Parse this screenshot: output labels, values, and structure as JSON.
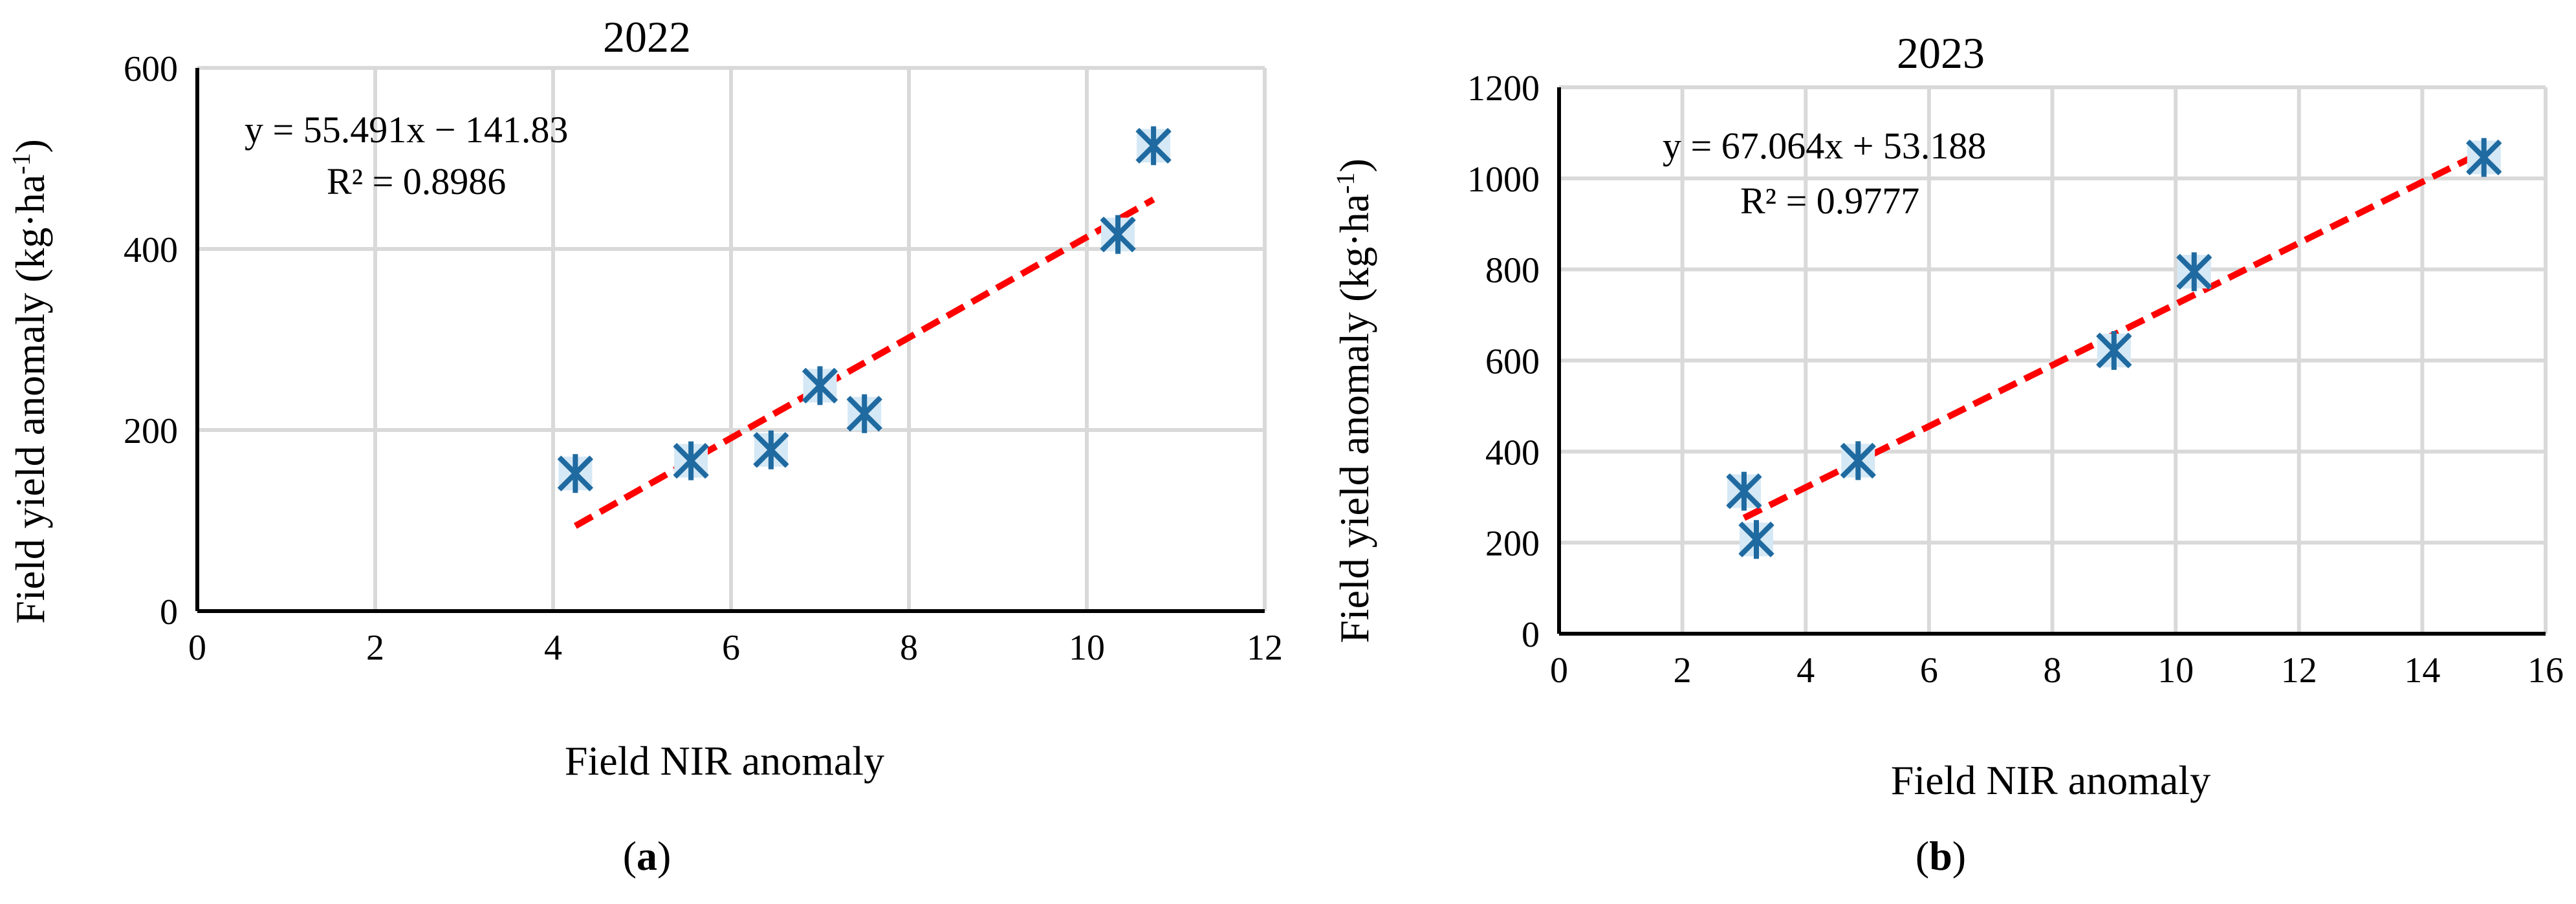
{
  "chart_data": [
    {
      "type": "scatter",
      "title": "2022",
      "xlabel": "Field NIR anomaly",
      "ylabel_main": "Field yield anomaly (kg·ha",
      "ylabel_sup": "-1",
      "ylabel_end": ")",
      "xlim": [
        0,
        12
      ],
      "ylim": [
        0,
        600
      ],
      "xticks": [
        0,
        2,
        4,
        6,
        8,
        10,
        12
      ],
      "yticks": [
        0,
        200,
        400,
        600
      ],
      "grid": true,
      "points": [
        {
          "x": 4.25,
          "y": 152
        },
        {
          "x": 5.55,
          "y": 166
        },
        {
          "x": 6.45,
          "y": 178
        },
        {
          "x": 7.0,
          "y": 249
        },
        {
          "x": 7.5,
          "y": 218
        },
        {
          "x": 10.35,
          "y": 416
        },
        {
          "x": 10.75,
          "y": 514
        }
      ],
      "trendline": {
        "slope": 55.491,
        "intercept": -141.83,
        "x_start": 4.25,
        "x_end": 10.75
      },
      "equation": "y = 55.491x − 141.83",
      "r2_text": "R² = 0.8986",
      "caption_letter": "a"
    },
    {
      "type": "scatter",
      "title": "2023",
      "xlabel": "Field NIR anomaly",
      "ylabel_main": "Field yield anomaly (kg·ha",
      "ylabel_sup": "-1",
      "ylabel_end": ")",
      "xlim": [
        0,
        16
      ],
      "ylim": [
        0,
        1200
      ],
      "xticks": [
        0,
        2,
        4,
        6,
        8,
        10,
        12,
        14,
        16
      ],
      "yticks": [
        0,
        200,
        400,
        600,
        800,
        1000,
        1200
      ],
      "grid": true,
      "points": [
        {
          "x": 3.0,
          "y": 313
        },
        {
          "x": 3.2,
          "y": 207
        },
        {
          "x": 4.85,
          "y": 380
        },
        {
          "x": 9.0,
          "y": 622
        },
        {
          "x": 10.3,
          "y": 795
        },
        {
          "x": 15.0,
          "y": 1046
        }
      ],
      "trendline": {
        "slope": 67.064,
        "intercept": 53.188,
        "x_start": 3.0,
        "x_end": 15.0
      },
      "equation": "y = 67.064x + 53.188",
      "r2_text": "R² = 0.9777",
      "caption_letter": "b"
    }
  ]
}
